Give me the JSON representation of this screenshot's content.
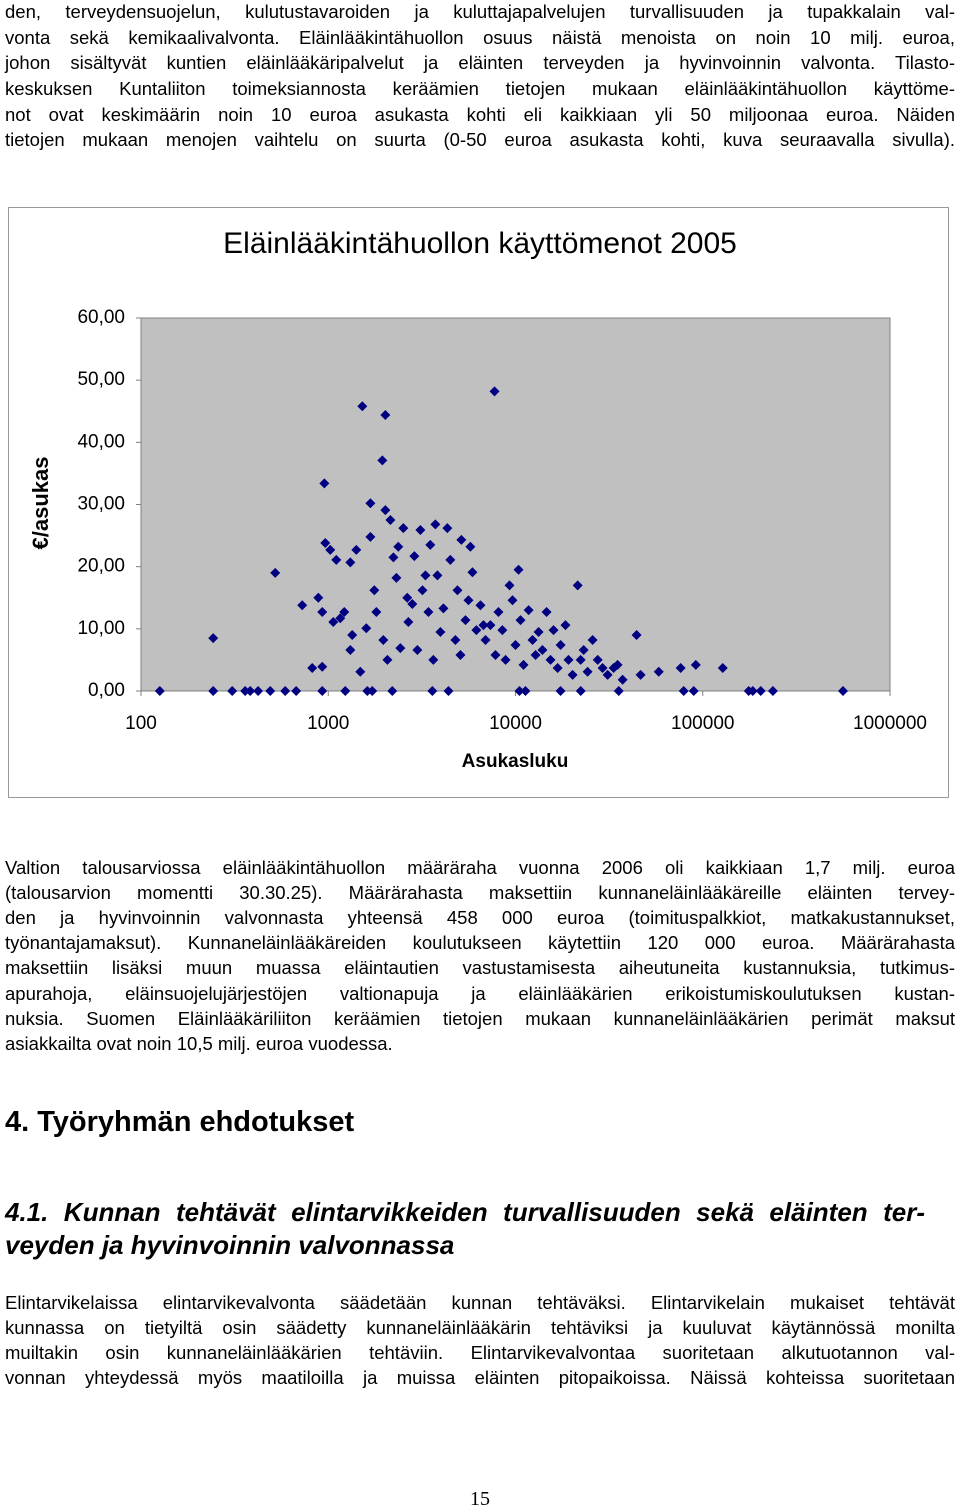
{
  "paragraphs": [
    {
      "lines": [
        "den, terveydensuojelun, kulutustavaroiden ja kuluttajapalvelujen turvallisuuden ja tupakkalain val-",
        "vonta sekä kemikaalivalvonta. Eläinlääkintähuollon osuus näistä menoista on noin 10 milj. euroa,",
        "johon sisältyvät kuntien eläinlääkäripalvelut ja eläinten terveyden ja hyvinvoinnin valvonta. Tilasto-",
        "keskuksen Kuntaliiton toimeksiannosta keräämien tietojen mukaan eläinlääkintähuollon käyttöme-",
        "not ovat keskimäärin noin 10 euroa asukasta kohti eli kaikkiaan yli 50 miljoonaa euroa. Näiden",
        "tietojen mukaan menojen vaihtelu on suurta (0-50 euroa asukasta kohti, kuva seuraavalla sivulla)."
      ]
    },
    {
      "lines": [
        "Valtion talousarviossa eläinlääkintähuollon määräraha vuonna 2006 oli kaikkiaan 1,7 milj. euroa",
        "(talousarvion momentti 30.30.25). Määrärahasta maksettiin kunnaneläinlääkäreille eläinten tervey-",
        "den ja hyvinvoinnin valvonnasta yhteensä 458 000 euroa (toimituspalkkiot, matkakustannukset,",
        "työnantajamaksut). Kunnaneläinlääkäreiden koulutukseen käytettiin 120 000 euroa. Määrärahasta",
        "maksettiin lisäksi muun muassa eläintautien vastustamisesta aiheutuneita kustannuksia, tutkimus-",
        "apurahoja, eläinsuojelujärjestöjen valtionapuja ja eläinlääkärien erikoistumiskoulutuksen kustan-",
        "nuksia. Suomen Eläinlääkäriliiton keräämien tietojen mukaan kunnaneläinlääkärien perimät maksut",
        "asiakkailta ovat noin 10,5 milj. euroa vuodessa."
      ]
    },
    {
      "lines": [
        "Elintarvikelaissa elintarvikevalvonta säädetään kunnan tehtäväksi. Elintarvikelain mukaiset tehtävät",
        "kunnassa on tietyiltä osin säädetty kunnaneläinlääkärin tehtäviksi ja kuuluvat käytännössä monilta",
        "muiltakin osin kunnaneläinlääkärien tehtäviin. Elintarvikevalvontaa suoritetaan alkutuotannon val-",
        "vonnan yhteydessä myös maatiloilla ja muissa eläinten pitopaikoissa. Näissä kohteissa suoritetaan"
      ]
    }
  ],
  "heading": "4. Työryhmän ehdotukset",
  "subheading": {
    "lines": [
      "4.1. Kunnan tehtävät elintarvikkeiden turvallisuuden sekä eläinten ter-",
      "veyden ja hyvinvoinnin valvonnassa"
    ]
  },
  "page_number": "15",
  "chart_data": {
    "type": "scatter",
    "title": "Eläinlääkintähuollon käyttömenot 2005",
    "x_label": "Asukasluku",
    "y_label": "€/asukas",
    "color": "#000080",
    "xscale": "log",
    "grid": false,
    "xlim": [
      100,
      1000000
    ],
    "xticks": [
      100,
      1000,
      10000,
      100000,
      1000000
    ],
    "ylim": [
      0,
      60
    ],
    "yticks": [
      {
        "value": 0,
        "label": "0,00"
      },
      {
        "value": 10,
        "label": "10,00"
      },
      {
        "value": 20,
        "label": "20,00"
      },
      {
        "value": 30,
        "label": "30,00"
      },
      {
        "value": 40,
        "label": "40,00"
      },
      {
        "value": 50,
        "label": "50,00"
      },
      {
        "value": 60,
        "label": "60,00"
      }
    ],
    "x": [
      126,
      243,
      307,
      360,
      383,
      422,
      490,
      589,
      674,
      929,
      1233,
      1617,
      1718,
      2198,
      3597,
      4385,
      10500,
      11300,
      17400,
      22300,
      35600,
      79100,
      89500,
      176000,
      185000,
      204000,
      237000,
      561000,
      243,
      521,
      726,
      885,
      929,
      953,
      964,
      1025,
      1104,
      821,
      929,
      1064,
      1159,
      1218,
      1312,
      1343,
      1312,
      1412,
      1483,
      1520,
      1596,
      1679,
      1679,
      1762,
      1807,
      1945,
      2018,
      1968,
      2018,
      2070,
      2148,
      2228,
      2312,
      2366,
      2427,
      2518,
      2642,
      2679,
      2812,
      2884,
      2992,
      3105,
      3184,
      3304,
      3428,
      3508,
      3640,
      3733,
      3828,
      3972,
      4121,
      4325,
      4487,
      4775,
      4898,
      5082,
      5140,
      5405,
      5608,
      5741,
      5888,
      6180,
      6500,
      6745,
      6918,
      7345,
      7727,
      7816,
      8110,
      8511,
      8851,
      9290,
      9638,
      10000,
      10380,
      10640,
      11040,
      11750,
      12330,
      12800,
      13280,
      13930,
      14650,
      15380,
      15960,
      16790,
      17420,
      18490,
      19190,
      20180,
      21480,
      22280,
      23120,
      24270,
      25820,
      27480,
      29170,
      31050,
      33420,
      35080,
      37330,
      44330,
      46560,
      58210,
      76210,
      91830,
      127900
    ],
    "values": [
      0,
      0,
      0,
      0,
      0,
      0,
      0,
      0,
      0,
      0,
      0,
      0,
      0,
      0,
      0,
      0,
      0,
      0,
      0,
      0,
      0,
      0,
      0,
      0,
      0,
      0,
      0,
      0,
      8.5,
      19,
      13.8,
      15,
      12.7,
      33.4,
      23.8,
      22.7,
      21.1,
      3.7,
      3.9,
      11.1,
      11.7,
      12.7,
      20.7,
      9,
      6.6,
      22.7,
      3.1,
      45.8,
      10.1,
      24.8,
      30.2,
      16.2,
      12.7,
      37.1,
      44.4,
      8.2,
      29.1,
      5,
      27.5,
      21.5,
      18.2,
      23.2,
      6.9,
      26.2,
      15,
      11.1,
      14,
      21.7,
      6.6,
      25.9,
      16.2,
      18.6,
      12.7,
      23.5,
      5,
      26.8,
      18.6,
      9.5,
      13.3,
      26.2,
      21.1,
      8.2,
      16.2,
      5.8,
      24.3,
      11.4,
      14.6,
      23.2,
      19.1,
      9.8,
      13.8,
      10.6,
      8.2,
      10.6,
      48.2,
      5.8,
      12.7,
      9.8,
      5,
      17,
      14.6,
      7.4,
      19.5,
      11.4,
      4.2,
      13,
      8.2,
      5.8,
      9.5,
      6.6,
      12.7,
      5,
      9.8,
      3.7,
      7.4,
      10.6,
      5,
      2.6,
      17,
      5,
      6.6,
      3.1,
      8.2,
      5,
      3.7,
      2.6,
      3.7,
      4.2,
      1.8,
      9,
      2.6,
      3.1,
      3.7,
      4.2,
      3.7
    ]
  }
}
